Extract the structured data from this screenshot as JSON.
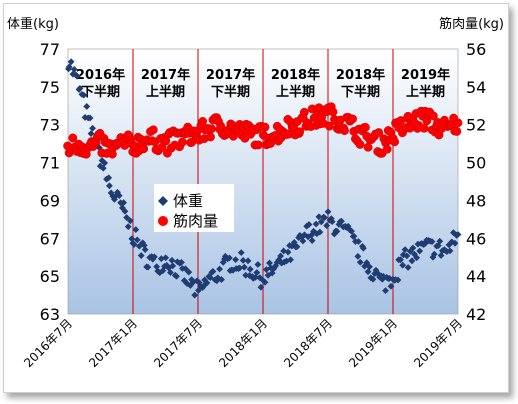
{
  "chart_data": {
    "type": "scatter",
    "left_axis_label": "体重(kg)",
    "right_axis_label": "筋肉量(kg)",
    "left_ylim": [
      63,
      77
    ],
    "left_ticks": [
      63,
      65,
      67,
      69,
      71,
      73,
      75,
      77
    ],
    "right_ylim": [
      42,
      56
    ],
    "right_ticks": [
      42,
      44,
      46,
      48,
      50,
      52,
      54,
      56
    ],
    "x_range_months": [
      "2016-07",
      "2019-07"
    ],
    "x_tick_labels": [
      "2016年7月",
      "2017年1月",
      "2017年7月",
      "2018年1月",
      "2018年7月",
      "2019年1月",
      "2019年7月"
    ],
    "x_tick_dates": [
      "2016-07",
      "2017-01",
      "2017-07",
      "2018-01",
      "2018-07",
      "2019-01",
      "2019-07"
    ],
    "dividers": [
      "2017-01",
      "2017-07",
      "2018-01",
      "2018-07",
      "2019-01"
    ],
    "period_labels": [
      {
        "line1": "2016年",
        "line2": "下半期",
        "center": "2016-10"
      },
      {
        "line1": "2017年",
        "line2": "上半期",
        "center": "2017-04"
      },
      {
        "line1": "2017年",
        "line2": "下半期",
        "center": "2017-10"
      },
      {
        "line1": "2018年",
        "line2": "上半期",
        "center": "2018-04"
      },
      {
        "line1": "2018年",
        "line2": "下半期",
        "center": "2018-10"
      },
      {
        "line1": "2019年",
        "line2": "上半期",
        "center": "2019-04"
      }
    ],
    "legend_position": "middle-left",
    "series": [
      {
        "name": "体重",
        "axis": "left",
        "marker": "diamond",
        "color": "#1f3d73",
        "points": [
          [
            "2016-07",
            76.5
          ],
          [
            "2016-08",
            75.0
          ],
          [
            "2016-09",
            72.9
          ],
          [
            "2016-10",
            71.3
          ],
          [
            "2016-11",
            69.5
          ],
          [
            "2016-12",
            68.6
          ],
          [
            "2017-01",
            67.2
          ],
          [
            "2017-02",
            66.2
          ],
          [
            "2017-03",
            65.6
          ],
          [
            "2017-04",
            65.9
          ],
          [
            "2017-05",
            65.4
          ],
          [
            "2017-06",
            64.9
          ],
          [
            "2017-07",
            64.1
          ],
          [
            "2017-08",
            64.8
          ],
          [
            "2017-09",
            65.2
          ],
          [
            "2017-10",
            65.8
          ],
          [
            "2017-11",
            65.7
          ],
          [
            "2017-12",
            65.3
          ],
          [
            "2018-01",
            64.9
          ],
          [
            "2018-02",
            65.4
          ],
          [
            "2018-03",
            65.9
          ],
          [
            "2018-04",
            66.4
          ],
          [
            "2018-05",
            67.2
          ],
          [
            "2018-06",
            67.6
          ],
          [
            "2018-07",
            67.9
          ],
          [
            "2018-08",
            67.6
          ],
          [
            "2018-09",
            67.1
          ],
          [
            "2018-10",
            66.2
          ],
          [
            "2018-11",
            65.4
          ],
          [
            "2018-12",
            64.6
          ],
          [
            "2019-01",
            65.0
          ],
          [
            "2019-02",
            65.8
          ],
          [
            "2019-03",
            66.2
          ],
          [
            "2019-04",
            66.5
          ],
          [
            "2019-05",
            66.5
          ],
          [
            "2019-06",
            66.3
          ],
          [
            "2019-07",
            67.2
          ]
        ]
      },
      {
        "name": "筋肉量",
        "axis": "right",
        "marker": "circle",
        "color": "#ff0000",
        "points": [
          [
            "2016-07",
            50.8
          ],
          [
            "2016-08",
            51.0
          ],
          [
            "2016-09",
            50.8
          ],
          [
            "2016-10",
            51.0
          ],
          [
            "2016-11",
            50.6
          ],
          [
            "2016-12",
            51.0
          ],
          [
            "2017-01",
            50.9
          ],
          [
            "2017-02",
            51.2
          ],
          [
            "2017-03",
            51.2
          ],
          [
            "2017-04",
            51.0
          ],
          [
            "2017-05",
            51.2
          ],
          [
            "2017-06",
            51.4
          ],
          [
            "2017-07",
            51.5
          ],
          [
            "2017-08",
            51.8
          ],
          [
            "2017-09",
            52.0
          ],
          [
            "2017-10",
            51.8
          ],
          [
            "2017-11",
            51.6
          ],
          [
            "2017-12",
            51.5
          ],
          [
            "2018-01",
            51.4
          ],
          [
            "2018-02",
            51.5
          ],
          [
            "2018-03",
            51.8
          ],
          [
            "2018-04",
            52.0
          ],
          [
            "2018-05",
            52.2
          ],
          [
            "2018-06",
            52.4
          ],
          [
            "2018-07",
            52.5
          ],
          [
            "2018-08",
            52.3
          ],
          [
            "2018-09",
            52.0
          ],
          [
            "2018-10",
            51.5
          ],
          [
            "2018-11",
            51.2
          ],
          [
            "2018-12",
            51.0
          ],
          [
            "2019-01",
            51.5
          ],
          [
            "2019-02",
            51.9
          ],
          [
            "2019-03",
            52.2
          ],
          [
            "2019-04",
            52.3
          ],
          [
            "2019-05",
            52.0
          ],
          [
            "2019-06",
            51.7
          ],
          [
            "2019-07",
            52.1
          ]
        ]
      }
    ]
  },
  "colors": {
    "divider": "#cc0000",
    "plot_top": "#ffffff",
    "plot_bottom": "#a9c4e4",
    "weight_marker": "#1f3d73",
    "muscle_marker": "#ff0000"
  }
}
